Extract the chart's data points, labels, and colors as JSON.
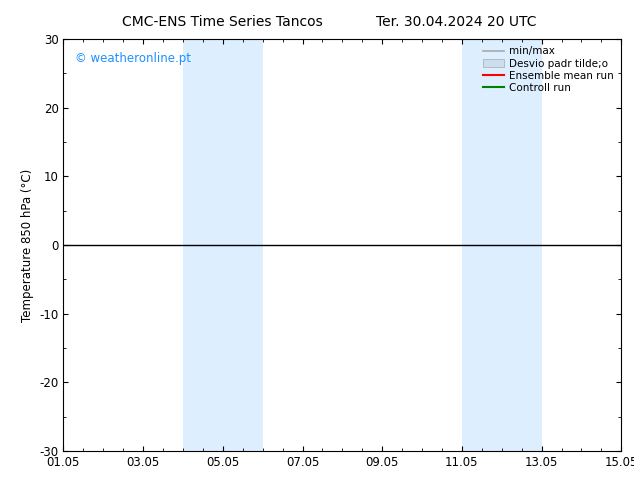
{
  "title_left": "CMC-ENS Time Series Tancos",
  "title_right": "Ter. 30.04.2024 20 UTC",
  "ylabel": "Temperature 850 hPa (°C)",
  "xlabel": "",
  "ylim": [
    -30,
    30
  ],
  "yticks": [
    -30,
    -20,
    -10,
    0,
    10,
    20,
    30
  ],
  "xtick_labels": [
    "01.05",
    "03.05",
    "05.05",
    "07.05",
    "09.05",
    "11.05",
    "13.05",
    "15.05"
  ],
  "xtick_positions": [
    0,
    2,
    4,
    6,
    8,
    10,
    12,
    14
  ],
  "watermark": "© weatheronline.pt",
  "watermark_color": "#1E90FF",
  "background_color": "#ffffff",
  "shade_bands": [
    {
      "xmin": 3.0,
      "xmax": 5.0
    },
    {
      "xmin": 10.0,
      "xmax": 12.0
    }
  ],
  "shade_color": "#ddeeff",
  "horizontal_line_y": 0,
  "horizontal_line_color": "#000000",
  "legend_items": [
    {
      "label": "min/max",
      "color": "#aaaaaa",
      "lw": 1.2,
      "ls": "-",
      "type": "line"
    },
    {
      "label": "Desvio padr tilde;o",
      "color": "#ccddee",
      "lw": 6,
      "ls": "-",
      "type": "patch"
    },
    {
      "label": "Ensemble mean run",
      "color": "#ff0000",
      "lw": 1.5,
      "ls": "-",
      "type": "line"
    },
    {
      "label": "Controll run",
      "color": "#008000",
      "lw": 1.5,
      "ls": "-",
      "type": "line"
    }
  ],
  "xmin": 0,
  "xmax": 14,
  "tick_direction": "in",
  "font_size": 8.5,
  "title_fontsize": 10
}
